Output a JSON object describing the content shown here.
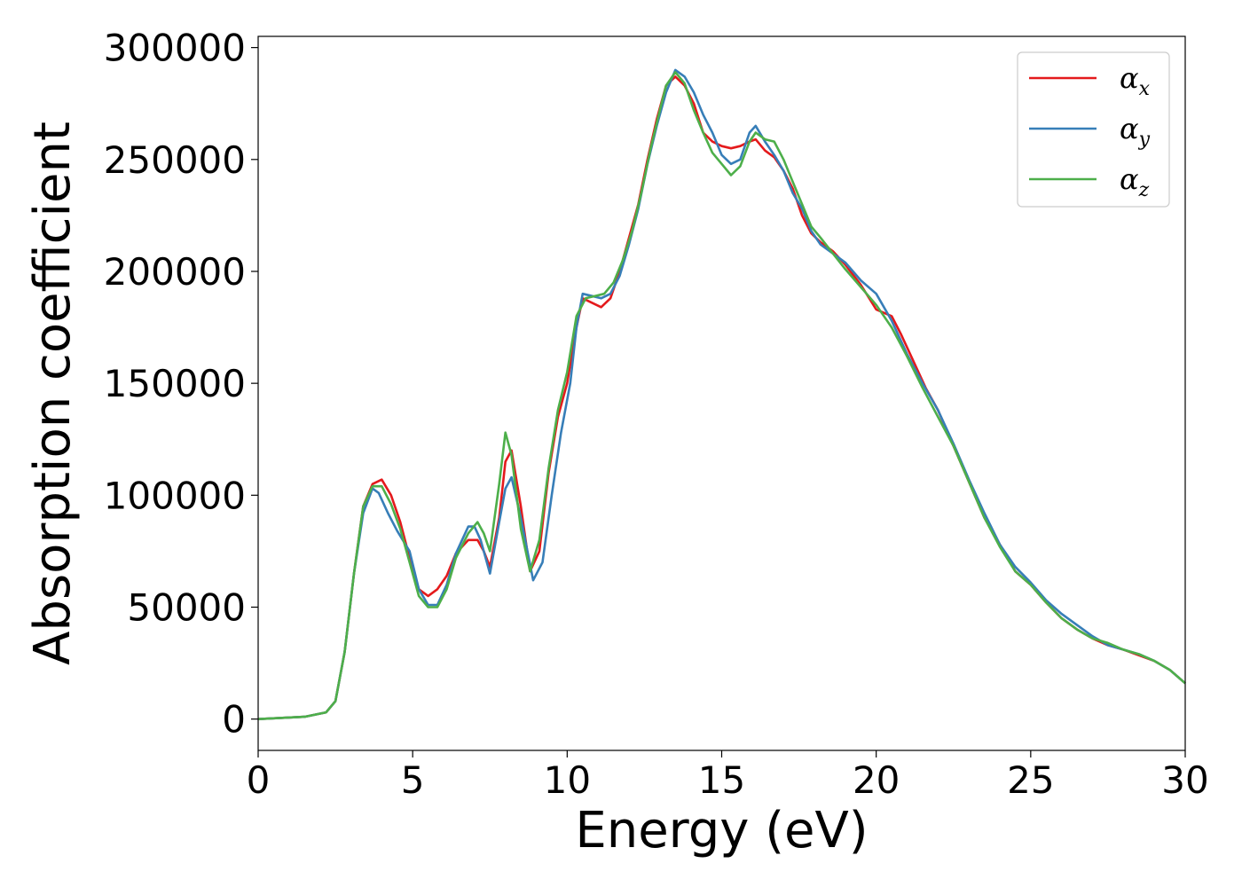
{
  "chart_data": {
    "type": "line",
    "xlabel": "Energy (eV)",
    "ylabel": "Absorption coefficient",
    "xlim": [
      0,
      30
    ],
    "ylim": [
      -14000,
      305000
    ],
    "xticks": [
      0,
      5,
      10,
      15,
      20,
      25,
      30
    ],
    "xtick_labels": [
      "0",
      "5",
      "10",
      "15",
      "20",
      "25",
      "30"
    ],
    "yticks": [
      0,
      50000,
      100000,
      150000,
      200000,
      250000,
      300000
    ],
    "ytick_labels": [
      "0",
      "50000",
      "100000",
      "150000",
      "200000",
      "250000",
      "300000"
    ],
    "grid": false,
    "legend_position": "top-right",
    "series": [
      {
        "name": "α",
        "subscript": "x",
        "color": "#e41a1c",
        "x": [
          0,
          1.5,
          2.2,
          2.5,
          2.8,
          3.1,
          3.4,
          3.7,
          4.0,
          4.3,
          4.6,
          4.9,
          5.2,
          5.5,
          5.8,
          6.1,
          6.4,
          6.8,
          7.1,
          7.3,
          7.5,
          7.8,
          8.0,
          8.2,
          8.5,
          8.8,
          9.1,
          9.4,
          9.7,
          10.0,
          10.3,
          10.5,
          10.8,
          11.1,
          11.4,
          11.7,
          12.0,
          12.3,
          12.6,
          12.9,
          13.2,
          13.5,
          13.8,
          14.1,
          14.4,
          14.7,
          15.0,
          15.3,
          15.6,
          15.9,
          16.1,
          16.4,
          16.7,
          17.0,
          17.3,
          17.6,
          17.9,
          18.2,
          18.6,
          19.0,
          19.5,
          20.0,
          20.5,
          20.8,
          21.2,
          21.6,
          22.0,
          22.5,
          23.0,
          23.5,
          24.0,
          24.5,
          25.0,
          25.5,
          26.0,
          26.5,
          27.0,
          27.5,
          28.0,
          28.5,
          29.0,
          29.5,
          30.0
        ],
        "y": [
          0,
          1000,
          3000,
          8000,
          30000,
          65000,
          95000,
          105000,
          107000,
          100000,
          88000,
          72000,
          58000,
          55000,
          58000,
          64000,
          74000,
          80000,
          80000,
          75000,
          68000,
          90000,
          115000,
          120000,
          95000,
          66000,
          75000,
          110000,
          135000,
          150000,
          175000,
          188000,
          186000,
          184000,
          188000,
          200000,
          215000,
          230000,
          250000,
          268000,
          283000,
          287000,
          283000,
          275000,
          262000,
          258000,
          256000,
          255000,
          256000,
          258000,
          259000,
          254000,
          251000,
          245000,
          237000,
          225000,
          217000,
          213000,
          209000,
          203000,
          194000,
          183000,
          180000,
          172000,
          160000,
          148000,
          138000,
          122000,
          106000,
          90000,
          78000,
          66000,
          60000,
          52000,
          45000,
          40000,
          36000,
          33000,
          31000,
          28500,
          26000,
          22000,
          16000
        ]
      },
      {
        "name": "α",
        "subscript": "y",
        "color": "#377eb8",
        "x": [
          0,
          1.5,
          2.2,
          2.5,
          2.8,
          3.1,
          3.4,
          3.7,
          3.9,
          4.2,
          4.5,
          4.9,
          5.2,
          5.5,
          5.8,
          6.1,
          6.4,
          6.8,
          7.0,
          7.2,
          7.5,
          7.8,
          8.0,
          8.2,
          8.5,
          8.9,
          9.2,
          9.5,
          9.8,
          10.1,
          10.3,
          10.5,
          10.8,
          11.1,
          11.4,
          11.7,
          12.0,
          12.3,
          12.6,
          12.9,
          13.2,
          13.5,
          13.8,
          14.1,
          14.4,
          14.7,
          15.0,
          15.3,
          15.6,
          15.9,
          16.1,
          16.4,
          16.7,
          17.0,
          17.3,
          17.6,
          17.9,
          18.2,
          18.6,
          19.0,
          19.5,
          20.0,
          20.5,
          21.0,
          21.5,
          22.0,
          22.5,
          23.0,
          23.5,
          24.0,
          24.5,
          25.0,
          25.5,
          26.0,
          26.5,
          27.0,
          27.5,
          28.0,
          28.5,
          29.0,
          29.5,
          30.0
        ],
        "y": [
          0,
          1000,
          3000,
          8000,
          30000,
          65000,
          92000,
          103000,
          101000,
          92000,
          84000,
          75000,
          58000,
          51000,
          51000,
          60000,
          74000,
          86000,
          86000,
          80000,
          65000,
          88000,
          103000,
          108000,
          90000,
          62000,
          70000,
          100000,
          128000,
          150000,
          175000,
          190000,
          189000,
          188000,
          190000,
          198000,
          212000,
          228000,
          248000,
          265000,
          280000,
          290000,
          287000,
          280000,
          270000,
          262000,
          252000,
          248000,
          250000,
          262000,
          265000,
          258000,
          252000,
          245000,
          235000,
          228000,
          218000,
          212000,
          208000,
          204000,
          196000,
          190000,
          178000,
          163000,
          150000,
          138000,
          123000,
          107000,
          92000,
          78000,
          68000,
          61000,
          53000,
          47000,
          42000,
          37000,
          33000,
          31000,
          29000,
          26000,
          22000,
          16000
        ]
      },
      {
        "name": "α",
        "subscript": "z",
        "color": "#4daf4a",
        "x": [
          0,
          1.5,
          2.2,
          2.5,
          2.8,
          3.1,
          3.4,
          3.7,
          4.0,
          4.3,
          4.6,
          4.9,
          5.2,
          5.5,
          5.8,
          6.1,
          6.4,
          6.8,
          7.1,
          7.3,
          7.5,
          7.8,
          8.0,
          8.2,
          8.5,
          8.8,
          9.1,
          9.4,
          9.7,
          10.0,
          10.3,
          10.6,
          10.9,
          11.2,
          11.5,
          11.8,
          12.1,
          12.4,
          12.7,
          13.0,
          13.2,
          13.5,
          13.8,
          14.1,
          14.4,
          14.7,
          15.0,
          15.3,
          15.6,
          15.9,
          16.1,
          16.4,
          16.7,
          17.0,
          17.3,
          17.6,
          17.9,
          18.2,
          18.6,
          19.0,
          19.5,
          20.0,
          20.5,
          21.0,
          21.5,
          22.0,
          22.5,
          23.0,
          23.5,
          24.0,
          24.5,
          25.0,
          25.5,
          26.0,
          26.5,
          27.0,
          27.5,
          28.0,
          28.5,
          29.0,
          29.5,
          30.0
        ],
        "y": [
          0,
          1000,
          3000,
          8000,
          30000,
          65000,
          95000,
          104000,
          104000,
          96000,
          85000,
          70000,
          55000,
          50000,
          50000,
          58000,
          72000,
          83000,
          88000,
          83000,
          75000,
          105000,
          128000,
          118000,
          85000,
          66000,
          80000,
          112000,
          138000,
          155000,
          180000,
          188000,
          189000,
          190000,
          195000,
          205000,
          218000,
          235000,
          255000,
          272000,
          283000,
          289000,
          284000,
          272000,
          262000,
          253000,
          248000,
          243000,
          247000,
          258000,
          262000,
          259000,
          258000,
          250000,
          240000,
          230000,
          220000,
          215000,
          208000,
          201000,
          193000,
          185000,
          175000,
          162000,
          148000,
          135000,
          122000,
          106000,
          90000,
          77000,
          66000,
          60000,
          52000,
          45000,
          40000,
          36000,
          34000,
          31000,
          29000,
          26000,
          22000,
          16000
        ]
      }
    ]
  }
}
